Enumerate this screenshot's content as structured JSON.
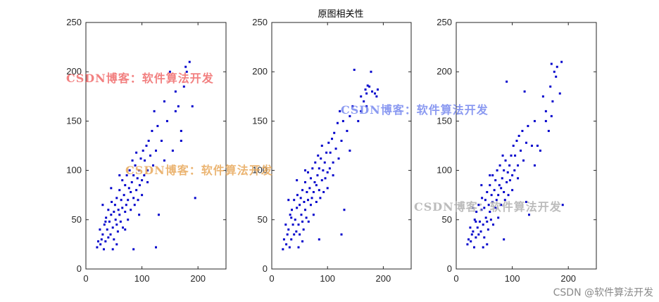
{
  "chart_data": {
    "title": "原图相关性",
    "type": "scatter",
    "point_color": "#0000cc",
    "xlim": [
      0,
      250
    ],
    "ylim": [
      0,
      250
    ],
    "xticks": [
      0,
      100,
      200
    ],
    "yticks": [
      0,
      50,
      100,
      150,
      200,
      250
    ],
    "panels": [
      {
        "name": "panel-1",
        "points": [
          [
            20,
            22
          ],
          [
            22,
            28
          ],
          [
            25,
            40
          ],
          [
            26,
            25
          ],
          [
            28,
            30
          ],
          [
            30,
            35
          ],
          [
            32,
            20
          ],
          [
            33,
            45
          ],
          [
            35,
            28
          ],
          [
            36,
            52
          ],
          [
            38,
            40
          ],
          [
            40,
            32
          ],
          [
            40,
            60
          ],
          [
            42,
            48
          ],
          [
            44,
            35
          ],
          [
            45,
            55
          ],
          [
            46,
            68
          ],
          [
            48,
            42
          ],
          [
            50,
            58
          ],
          [
            50,
            30
          ],
          [
            52,
            65
          ],
          [
            53,
            50
          ],
          [
            55,
            45
          ],
          [
            55,
            72
          ],
          [
            57,
            38
          ],
          [
            58,
            60
          ],
          [
            60,
            55
          ],
          [
            60,
            80
          ],
          [
            62,
            48
          ],
          [
            63,
            70
          ],
          [
            65,
            62
          ],
          [
            65,
            90
          ],
          [
            66,
            42
          ],
          [
            68,
            75
          ],
          [
            70,
            58
          ],
          [
            70,
            85
          ],
          [
            72,
            65
          ],
          [
            73,
            95
          ],
          [
            75,
            70
          ],
          [
            75,
            50
          ],
          [
            77,
            82
          ],
          [
            78,
            100
          ],
          [
            80,
            78
          ],
          [
            80,
            60
          ],
          [
            82,
            88
          ],
          [
            83,
            110
          ],
          [
            85,
            72
          ],
          [
            85,
            95
          ],
          [
            87,
            65
          ],
          [
            88,
            105
          ],
          [
            90,
            80
          ],
          [
            90,
            118
          ],
          [
            92,
            92
          ],
          [
            93,
            70
          ],
          [
            95,
            100
          ],
          [
            96,
            85
          ],
          [
            98,
            112
          ],
          [
            100,
            90
          ],
          [
            100,
            75
          ],
          [
            102,
            120
          ],
          [
            104,
            95
          ],
          [
            105,
            110
          ],
          [
            108,
            125
          ],
          [
            110,
            100
          ],
          [
            110,
            88
          ],
          [
            112,
            130
          ],
          [
            115,
            115
          ],
          [
            118,
            140
          ],
          [
            120,
            105
          ],
          [
            122,
            160
          ],
          [
            125,
            120
          ],
          [
            128,
            145
          ],
          [
            130,
            55
          ],
          [
            135,
            130
          ],
          [
            140,
            170
          ],
          [
            145,
            150
          ],
          [
            150,
            200
          ],
          [
            155,
            120
          ],
          [
            160,
            180
          ],
          [
            165,
            165
          ],
          [
            170,
            140
          ],
          [
            175,
            185
          ],
          [
            178,
            205
          ],
          [
            180,
            200
          ],
          [
            185,
            210
          ],
          [
            190,
            165
          ],
          [
            195,
            72
          ],
          [
            170,
            130
          ],
          [
            160,
            160
          ],
          [
            140,
            110
          ],
          [
            125,
            22
          ],
          [
            85,
            20
          ],
          [
            60,
            95
          ],
          [
            45,
            82
          ],
          [
            30,
            65
          ],
          [
            55,
            25
          ],
          [
            35,
            48
          ],
          [
            48,
            20
          ],
          [
            70,
            40
          ],
          [
            95,
            55
          ]
        ]
      },
      {
        "name": "panel-2",
        "points": [
          [
            20,
            20
          ],
          [
            22,
            30
          ],
          [
            25,
            45
          ],
          [
            26,
            25
          ],
          [
            28,
            35
          ],
          [
            30,
            40
          ],
          [
            32,
            22
          ],
          [
            33,
            55
          ],
          [
            35,
            30
          ],
          [
            36,
            60
          ],
          [
            38,
            45
          ],
          [
            40,
            35
          ],
          [
            40,
            70
          ],
          [
            42,
            50
          ],
          [
            44,
            38
          ],
          [
            45,
            62
          ],
          [
            46,
            75
          ],
          [
            48,
            45
          ],
          [
            50,
            65
          ],
          [
            50,
            35
          ],
          [
            52,
            72
          ],
          [
            53,
            55
          ],
          [
            55,
            48
          ],
          [
            55,
            80
          ],
          [
            57,
            40
          ],
          [
            58,
            68
          ],
          [
            60,
            60
          ],
          [
            60,
            88
          ],
          [
            62,
            52
          ],
          [
            63,
            78
          ],
          [
            65,
            70
          ],
          [
            65,
            98
          ],
          [
            66,
            48
          ],
          [
            68,
            82
          ],
          [
            70,
            65
          ],
          [
            70,
            92
          ],
          [
            72,
            72
          ],
          [
            73,
            102
          ],
          [
            75,
            78
          ],
          [
            75,
            55
          ],
          [
            77,
            88
          ],
          [
            78,
            108
          ],
          [
            80,
            85
          ],
          [
            80,
            68
          ],
          [
            82,
            95
          ],
          [
            83,
            115
          ],
          [
            85,
            80
          ],
          [
            85,
            102
          ],
          [
            87,
            72
          ],
          [
            88,
            112
          ],
          [
            90,
            90
          ],
          [
            90,
            125
          ],
          [
            92,
            100
          ],
          [
            93,
            78
          ],
          [
            95,
            108
          ],
          [
            96,
            92
          ],
          [
            98,
            118
          ],
          [
            100,
            98
          ],
          [
            100,
            82
          ],
          [
            102,
            128
          ],
          [
            104,
            102
          ],
          [
            105,
            118
          ],
          [
            108,
            132
          ],
          [
            110,
            108
          ],
          [
            110,
            95
          ],
          [
            112,
            138
          ],
          [
            115,
            122
          ],
          [
            118,
            148
          ],
          [
            120,
            112
          ],
          [
            122,
            160
          ],
          [
            125,
            130
          ],
          [
            128,
            150
          ],
          [
            130,
            60
          ],
          [
            135,
            140
          ],
          [
            140,
            155
          ],
          [
            145,
            165
          ],
          [
            148,
            202
          ],
          [
            155,
            150
          ],
          [
            160,
            175
          ],
          [
            165,
            170
          ],
          [
            168,
            182
          ],
          [
            170,
            178
          ],
          [
            172,
            186
          ],
          [
            175,
            185
          ],
          [
            178,
            200
          ],
          [
            180,
            180
          ],
          [
            185,
            178
          ],
          [
            188,
            175
          ],
          [
            190,
            182
          ],
          [
            170,
            165
          ],
          [
            160,
            160
          ],
          [
            140,
            120
          ],
          [
            125,
            35
          ],
          [
            85,
            30
          ],
          [
            60,
            100
          ],
          [
            45,
            90
          ],
          [
            30,
            70
          ],
          [
            55,
            28
          ],
          [
            35,
            52
          ],
          [
            48,
            22
          ]
        ]
      },
      {
        "name": "panel-3",
        "points": [
          [
            20,
            25
          ],
          [
            22,
            30
          ],
          [
            25,
            42
          ],
          [
            26,
            28
          ],
          [
            28,
            35
          ],
          [
            30,
            38
          ],
          [
            32,
            22
          ],
          [
            33,
            50
          ],
          [
            35,
            32
          ],
          [
            36,
            58
          ],
          [
            38,
            42
          ],
          [
            40,
            35
          ],
          [
            40,
            65
          ],
          [
            42,
            48
          ],
          [
            44,
            38
          ],
          [
            45,
            60
          ],
          [
            46,
            72
          ],
          [
            48,
            45
          ],
          [
            50,
            62
          ],
          [
            50,
            32
          ],
          [
            52,
            70
          ],
          [
            53,
            52
          ],
          [
            55,
            48
          ],
          [
            55,
            78
          ],
          [
            57,
            40
          ],
          [
            58,
            65
          ],
          [
            60,
            58
          ],
          [
            60,
            85
          ],
          [
            62,
            50
          ],
          [
            63,
            75
          ],
          [
            65,
            68
          ],
          [
            65,
            95
          ],
          [
            66,
            45
          ],
          [
            68,
            80
          ],
          [
            70,
            62
          ],
          [
            70,
            90
          ],
          [
            72,
            70
          ],
          [
            73,
            100
          ],
          [
            75,
            75
          ],
          [
            75,
            52
          ],
          [
            77,
            85
          ],
          [
            78,
            105
          ],
          [
            80,
            82
          ],
          [
            80,
            65
          ],
          [
            82,
            92
          ],
          [
            83,
            115
          ],
          [
            85,
            78
          ],
          [
            85,
            100
          ],
          [
            87,
            70
          ],
          [
            88,
            110
          ],
          [
            90,
            88
          ],
          [
            90,
            190
          ],
          [
            92,
            98
          ],
          [
            93,
            75
          ],
          [
            95,
            105
          ],
          [
            96,
            90
          ],
          [
            98,
            115
          ],
          [
            100,
            95
          ],
          [
            100,
            80
          ],
          [
            102,
            125
          ],
          [
            104,
            100
          ],
          [
            105,
            115
          ],
          [
            108,
            130
          ],
          [
            110,
            105
          ],
          [
            110,
            92
          ],
          [
            112,
            135
          ],
          [
            115,
            120
          ],
          [
            118,
            140
          ],
          [
            120,
            110
          ],
          [
            122,
            180
          ],
          [
            125,
            128
          ],
          [
            128,
            145
          ],
          [
            130,
            55
          ],
          [
            135,
            125
          ],
          [
            140,
            150
          ],
          [
            145,
            125
          ],
          [
            150,
            120
          ],
          [
            155,
            175
          ],
          [
            160,
            160
          ],
          [
            165,
            140
          ],
          [
            168,
            185
          ],
          [
            170,
            208
          ],
          [
            172,
            170
          ],
          [
            175,
            200
          ],
          [
            178,
            195
          ],
          [
            180,
            205
          ],
          [
            185,
            178
          ],
          [
            188,
            210
          ],
          [
            190,
            65
          ],
          [
            170,
            155
          ],
          [
            160,
            150
          ],
          [
            140,
            105
          ],
          [
            125,
            68
          ],
          [
            85,
            30
          ],
          [
            60,
            95
          ],
          [
            45,
            85
          ],
          [
            30,
            62
          ],
          [
            55,
            25
          ],
          [
            35,
            48
          ],
          [
            48,
            22
          ]
        ]
      }
    ]
  },
  "watermarks": [
    {
      "text": "CSDN博客：软件算法开发",
      "color": "#f06a6a"
    },
    {
      "text": "CSDN博客：软件算法开发",
      "color": "#7788ee"
    },
    {
      "text": "CSDN博客：软件算法开发",
      "color": "#e8a85a"
    },
    {
      "text": "CSDN博客：软件算法开发",
      "color": "#b0b0b0"
    }
  ],
  "footer": {
    "credit": "CSDN @软件算法开发"
  }
}
